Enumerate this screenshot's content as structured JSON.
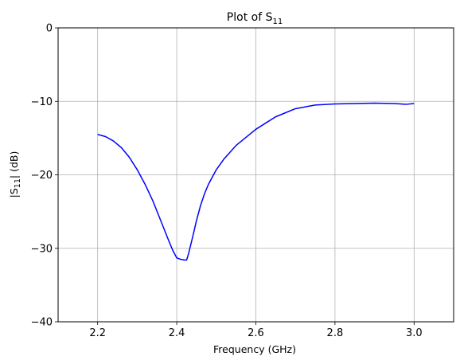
{
  "chart_data": {
    "type": "line",
    "title_main": "Plot of S",
    "title_sub": "11",
    "xlabel": "Frequency (GHz)",
    "ylabel_prefix": "|S",
    "ylabel_sub": "11",
    "ylabel_suffix": "| (dB)",
    "xlim": [
      2.1,
      3.1
    ],
    "ylim": [
      -40,
      0
    ],
    "xticks": [
      2.2,
      2.4,
      2.6,
      2.8,
      3.0
    ],
    "xtick_labels": [
      "2.2",
      "2.4",
      "2.6",
      "2.8",
      "3.0"
    ],
    "yticks": [
      -40,
      -30,
      -20,
      -10,
      0
    ],
    "ytick_labels": [
      "−40",
      "−30",
      "−20",
      "−10",
      "0"
    ],
    "grid": true,
    "line_color": "#0000ff",
    "series": [
      {
        "x": [
          2.2,
          2.22,
          2.24,
          2.26,
          2.28,
          2.3,
          2.32,
          2.34,
          2.36,
          2.38,
          2.39,
          2.4,
          2.405,
          2.41,
          2.42,
          2.425,
          2.43,
          2.44,
          2.45,
          2.46,
          2.47,
          2.48,
          2.5,
          2.52,
          2.55,
          2.6,
          2.65,
          2.7,
          2.75,
          2.8,
          2.85,
          2.9,
          2.95,
          2.98,
          3.0
        ],
        "y": [
          -14.5,
          -14.8,
          -15.4,
          -16.3,
          -17.6,
          -19.3,
          -21.3,
          -23.6,
          -26.3,
          -29.0,
          -30.3,
          -31.3,
          -31.4,
          -31.5,
          -31.6,
          -31.6,
          -30.7,
          -28.5,
          -26.2,
          -24.2,
          -22.6,
          -21.3,
          -19.3,
          -17.8,
          -16.0,
          -13.8,
          -12.1,
          -11.0,
          -10.5,
          -10.35,
          -10.3,
          -10.25,
          -10.3,
          -10.4,
          -10.3
        ]
      }
    ]
  }
}
